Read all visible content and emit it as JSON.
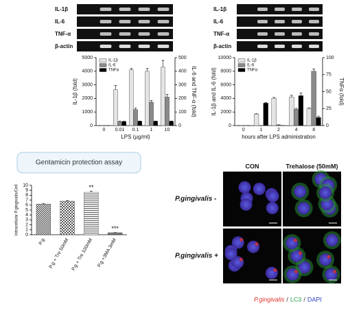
{
  "gels": {
    "left": [
      "IL-1β",
      "IL-6",
      "TNF-α",
      "β-actin"
    ],
    "right": [
      "IL-1β",
      "IL-6",
      "TNF-α",
      "β-actin"
    ]
  },
  "chart_data": [
    {
      "type": "bar",
      "categories": [
        "0",
        "0.01",
        "0.1",
        "1",
        "10"
      ],
      "xlabel": "LPS (μg/ml)",
      "ylabel": "IL-1β (fold)",
      "y2label": "IL-6 and TNF-α (fold)",
      "ylim": [
        0,
        5000
      ],
      "yticks": [
        0,
        1000,
        2000,
        3000,
        4000,
        5000
      ],
      "y2lim": [
        0,
        500
      ],
      "y2ticks": [
        0,
        100,
        200,
        300,
        400,
        500
      ],
      "legend": "top-left",
      "series": [
        {
          "name": "IL-1β",
          "color": "#e4e4e4",
          "values": [
            0,
            2650,
            4100,
            4000,
            4300
          ],
          "errors": [
            0,
            300,
            100,
            200,
            500
          ]
        },
        {
          "name": "IL-6",
          "color": "#8a8a8a",
          "axis": "y2",
          "values": [
            0,
            28,
            118,
            172,
            210
          ],
          "errors": [
            0,
            4,
            12,
            12,
            20
          ]
        },
        {
          "name": "TNFα",
          "color": "#000000",
          "axis": "y2",
          "values": [
            0,
            30,
            32,
            32,
            32
          ],
          "errors": [
            0,
            2,
            2,
            2,
            2
          ]
        }
      ]
    },
    {
      "type": "bar",
      "categories": [
        "0",
        "1",
        "2",
        "4",
        "8"
      ],
      "xlabel": "hours after LPS administration",
      "ylabel": "IL-1β and IL-6 (fold)",
      "y2label": "TNFα (fold)",
      "ylim": [
        0,
        10000
      ],
      "yticks": [
        0,
        2000,
        4000,
        6000,
        8000,
        10000
      ],
      "y2lim": [
        0,
        100
      ],
      "y2ticks": [
        0,
        25,
        50,
        75,
        100
      ],
      "legend": "top-left",
      "series": [
        {
          "name": "IL-1β",
          "color": "#e4e4e4",
          "values": [
            0,
            1700,
            4000,
            4200,
            2500
          ],
          "errors": [
            0,
            80,
            150,
            250,
            120
          ]
        },
        {
          "name": "IL-6",
          "color": "#8a8a8a",
          "values": [
            0,
            0,
            100,
            2400,
            8000
          ],
          "errors": [
            0,
            0,
            20,
            150,
            350
          ]
        },
        {
          "name": "TNFα",
          "color": "#000000",
          "axis": "y2",
          "values": [
            0,
            33,
            0,
            44,
            12
          ],
          "errors": [
            0,
            1,
            0,
            4,
            2
          ]
        }
      ]
    },
    {
      "type": "bar",
      "title": "Gentamicin protection assay",
      "categories": [
        "P.g",
        "P.g + Tre 50mM",
        "P.g + Tre 100mM",
        "P.g +3MA 3mM"
      ],
      "ylabel": "Intracellular P.gingivalis/Cell",
      "ylim": [
        0,
        10
      ],
      "yticks": [
        0,
        1,
        2,
        3,
        4,
        5,
        6,
        7,
        8,
        9,
        10
      ],
      "color": "#555555",
      "series": [
        {
          "name": "P.gingivalis",
          "values": [
            6.2,
            6.8,
            8.6,
            0.4
          ],
          "errors": [
            0.08,
            0.12,
            0.2,
            0.05
          ]
        }
      ],
      "annotations": [
        {
          "text": "**",
          "category": "P.g + Tre 100mM"
        },
        {
          "text": "***",
          "category": "P.g +3MA 3mM"
        }
      ]
    }
  ],
  "microscopy": {
    "columns": [
      "CON",
      "Trehalose (50mM)"
    ],
    "rows": [
      "P.gingivalis -",
      "P.gingivalis +"
    ],
    "legend": [
      {
        "text": "P.gingivalis",
        "color": "#e0302a"
      },
      {
        "text": "/",
        "color": "#333333"
      },
      {
        "text": "LC3",
        "color": "#2aa84a"
      },
      {
        "text": "/",
        "color": "#333333"
      },
      {
        "text": "DAPI",
        "color": "#3046c8"
      }
    ]
  }
}
